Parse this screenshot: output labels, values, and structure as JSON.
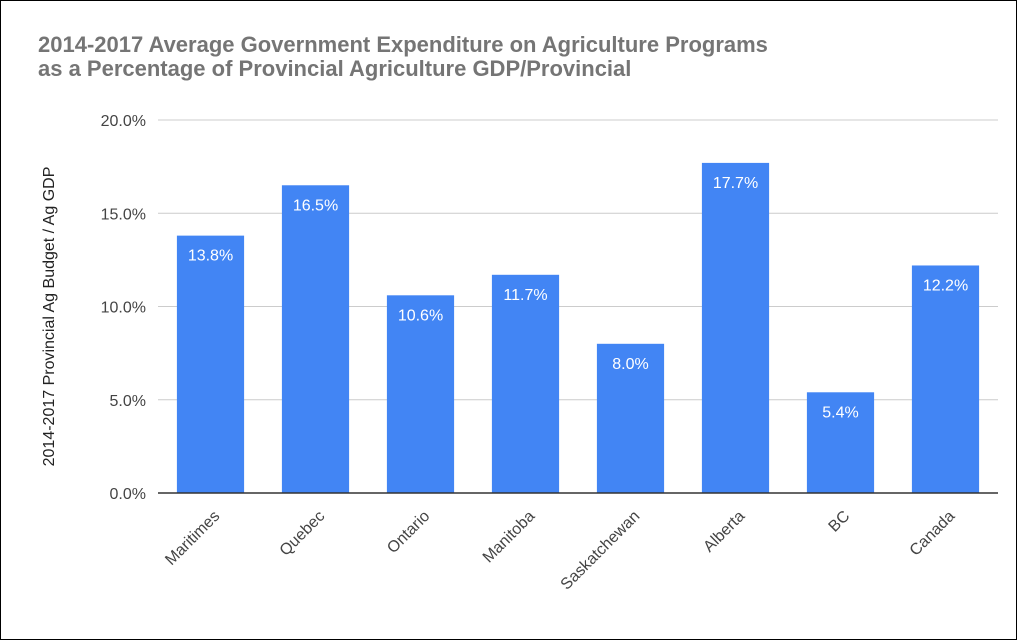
{
  "chart_data": {
    "type": "bar",
    "title_lines": [
      "2014-2017 Average Government Expenditure on Agriculture Programs",
      "as a Percentage of Provincial Agriculture GDP/Provincial"
    ],
    "ylabel": "2014-2017 Provincial Ag Budget / Ag GDP",
    "xlabel": "",
    "categories": [
      "Maritimes",
      "Quebec",
      "Ontario",
      "Manitoba",
      "Saskatchewan",
      "Alberta",
      "BC",
      "Canada"
    ],
    "values": [
      13.8,
      16.5,
      10.6,
      11.7,
      8.0,
      17.7,
      5.4,
      12.2
    ],
    "data_labels": [
      "13.8%",
      "16.5%",
      "10.6%",
      "11.7%",
      "8.0%",
      "17.7%",
      "5.4%",
      "12.2%"
    ],
    "ylim": [
      0,
      20
    ],
    "yticks": [
      0,
      5,
      10,
      15,
      20
    ],
    "ytick_labels": [
      "0.0%",
      "5.0%",
      "10.0%",
      "15.0%",
      "20.0%"
    ],
    "grid": true,
    "legend": "none",
    "colors": {
      "bar": "#4285f4",
      "grid": "#cccccc",
      "axis": "#333333"
    }
  }
}
